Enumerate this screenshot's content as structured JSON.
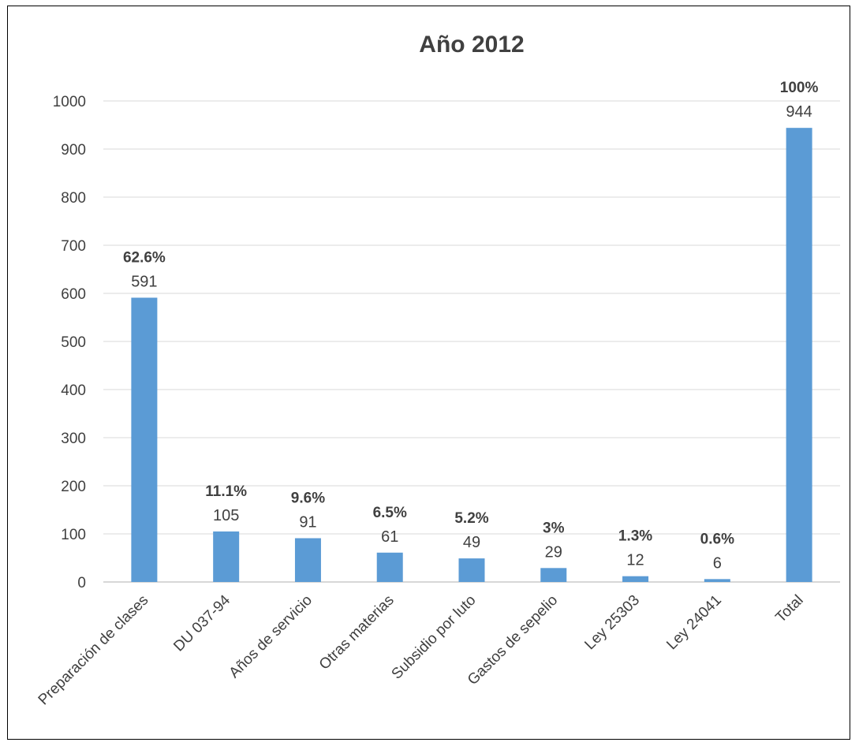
{
  "chart_data": {
    "type": "bar",
    "title": "Año 2012",
    "xlabel": "",
    "ylabel": "",
    "ylim": [
      0,
      1000
    ],
    "yticks": [
      0,
      100,
      200,
      300,
      400,
      500,
      600,
      700,
      800,
      900,
      1000
    ],
    "grid": true,
    "bar_color": "#5b9bd5",
    "categories": [
      "Preparación de clases",
      "DU 037-94",
      "Años de servicio",
      "Otras materias",
      "Subsidio por luto",
      "Gastos de sepelio",
      "Ley 25303",
      "Ley 24041",
      "Total"
    ],
    "values": [
      591,
      105,
      91,
      61,
      49,
      29,
      12,
      6,
      944
    ],
    "percent_labels": [
      "62.6%",
      "11.1%",
      "9.6%",
      "6.5%",
      "5.2%",
      "3%",
      "1.3%",
      "0.6%",
      "100%"
    ]
  }
}
